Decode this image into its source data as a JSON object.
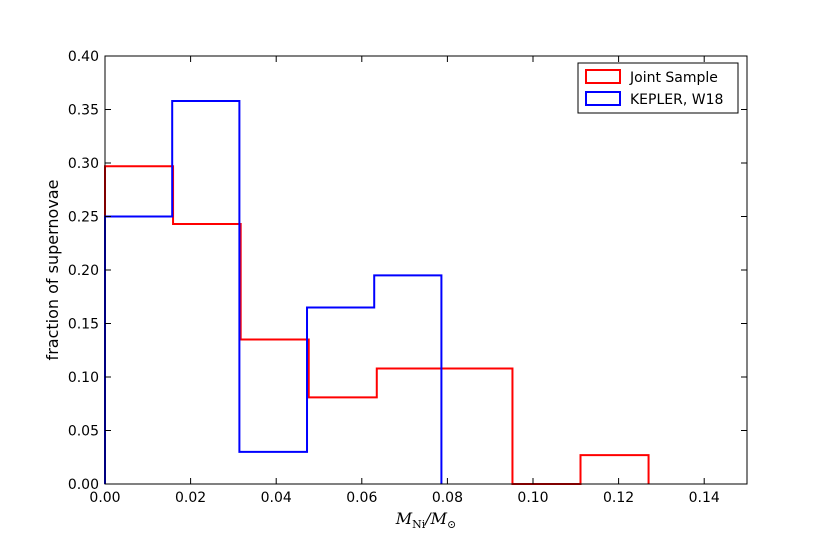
{
  "chart_data": {
    "type": "histogram",
    "xlabel": "M_Ni / M_⊙",
    "xlabel_parts": {
      "main": "M",
      "sub1": "Ni",
      "slash": "/M",
      "sub2": "⊙"
    },
    "ylabel": "fraction of supernovae",
    "xlim": [
      0.0,
      0.15
    ],
    "ylim": [
      0.0,
      0.4
    ],
    "xticks": [
      "0.00",
      "0.02",
      "0.04",
      "0.06",
      "0.08",
      "0.10",
      "0.12",
      "0.14"
    ],
    "yticks": [
      "0.00",
      "0.05",
      "0.10",
      "0.15",
      "0.20",
      "0.25",
      "0.30",
      "0.35",
      "0.40"
    ],
    "grid": false,
    "legend_position": "top-right",
    "series": [
      {
        "name": "Joint Sample",
        "color": "#ff0000",
        "bin_edges": [
          0.0,
          0.0159,
          0.0317,
          0.0476,
          0.0635,
          0.0794,
          0.0952,
          0.1111,
          0.127
        ],
        "values": [
          0.297,
          0.243,
          0.135,
          0.081,
          0.108,
          0.108,
          0.0,
          0.027
        ]
      },
      {
        "name": "KEPLER, W18",
        "color": "#0000ff",
        "bin_edges": [
          0.0,
          0.0157,
          0.0314,
          0.0472,
          0.0629,
          0.0786
        ],
        "values": [
          0.25,
          0.358,
          0.03,
          0.165,
          0.195
        ]
      }
    ]
  }
}
